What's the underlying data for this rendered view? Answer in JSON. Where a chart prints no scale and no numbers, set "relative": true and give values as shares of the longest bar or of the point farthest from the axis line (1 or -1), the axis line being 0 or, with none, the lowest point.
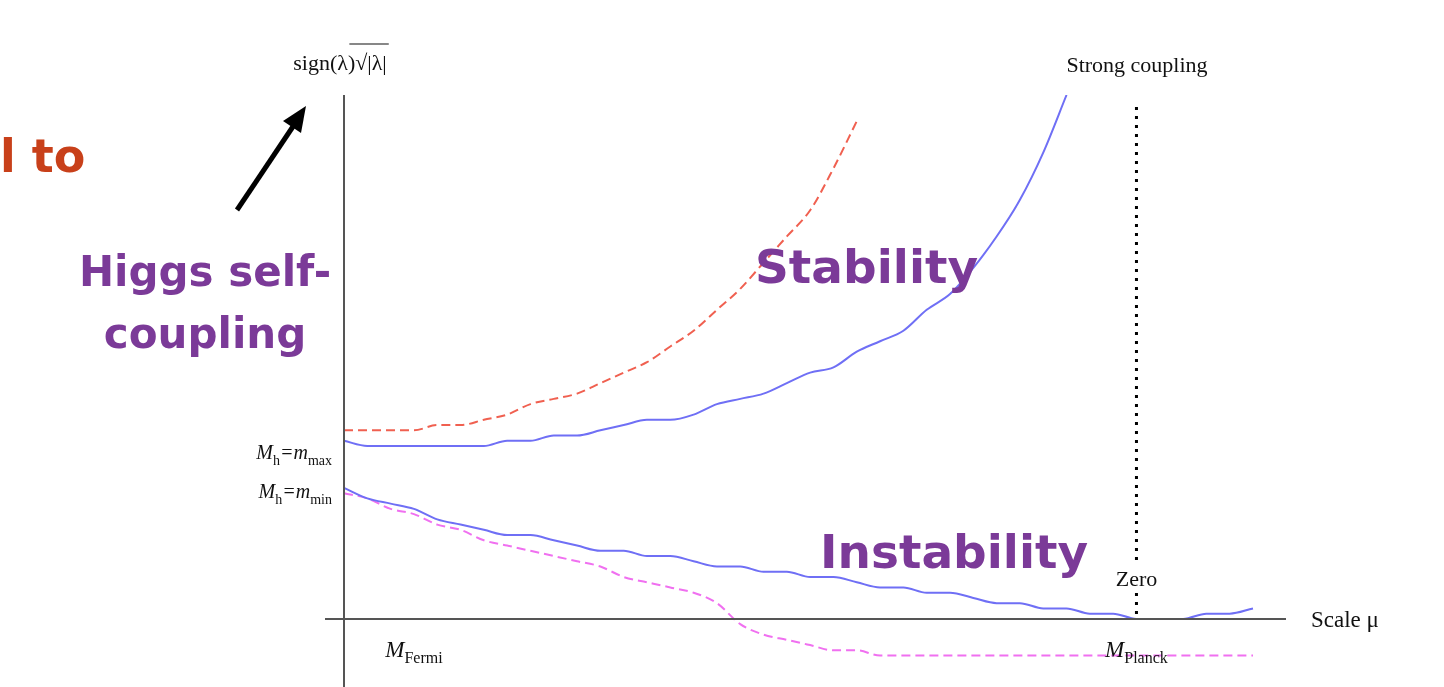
{
  "chart_data": {
    "type": "line",
    "relative": true,
    "marker": "none",
    "ylabel": "sign(λ)√|λ|",
    "xlabel": "Scale μ",
    "categories": [
      null,
      null,
      null,
      "M$_{Fermi}$",
      null,
      null,
      null,
      null,
      null,
      null,
      null,
      null,
      null,
      null,
      null,
      null,
      null,
      null,
      null,
      null,
      null,
      null,
      null,
      null,
      null,
      null,
      null,
      null,
      null,
      null,
      null,
      null,
      null,
      null,
      "M$_{Planck}$",
      null,
      null,
      null,
      null,
      null
    ],
    "series": [
      {
        "color": "#6f6ff5",
        "line_style": "solid",
        "values": [
          0.34,
          0.33,
          0.33,
          0.33,
          0.33,
          0.33,
          0.33,
          0.34,
          0.34,
          0.35,
          0.35,
          0.36,
          0.37,
          0.38,
          0.38,
          0.39,
          0.41,
          0.42,
          0.43,
          0.45,
          0.47,
          0.48,
          0.51,
          0.53,
          0.55,
          0.59,
          0.62,
          0.67,
          0.73,
          0.8,
          0.89,
          1,
          null,
          null,
          null,
          null,
          null,
          null,
          null,
          null
        ]
      },
      {
        "color": "#f06050",
        "line_style": "dashed",
        "values": [
          0.36,
          0.36,
          0.36,
          0.36,
          0.37,
          0.37,
          0.38,
          0.39,
          0.41,
          0.42,
          0.43,
          0.45,
          0.47,
          0.49,
          0.52,
          0.55,
          0.59,
          0.63,
          0.68,
          0.73,
          0.78,
          0.86,
          0.95,
          null,
          null,
          null,
          null,
          null,
          null,
          null,
          null,
          null,
          null,
          null,
          null,
          null,
          null,
          null,
          null,
          null
        ]
      },
      {
        "color": "#6f6ff5",
        "line_style": "solid",
        "values": [
          0.25,
          0.23,
          0.22,
          0.21,
          0.19,
          0.18,
          0.17,
          0.16,
          0.16,
          0.15,
          0.14,
          0.13,
          0.13,
          0.12,
          0.12,
          0.11,
          0.1,
          0.1,
          0.09,
          0.09,
          0.08,
          0.08,
          0.07,
          0.06,
          0.06,
          0.05,
          0.05,
          0.04,
          0.03,
          0.03,
          0.02,
          0.02,
          0.01,
          0.01,
          0,
          0,
          0,
          0.01,
          0.01,
          0.02
        ]
      },
      {
        "color": "#f070f0",
        "line_style": "dashed",
        "values": [
          0.24,
          0.23,
          0.21,
          0.2,
          0.18,
          0.17,
          0.15,
          0.14,
          0.13,
          0.12,
          0.11,
          0.1,
          0.08,
          0.07,
          0.06,
          0.05,
          0.03,
          -0.01,
          -0.03,
          -0.04,
          -0.05,
          -0.06,
          -0.06,
          -0.07,
          -0.07,
          -0.07,
          -0.07,
          -0.07,
          -0.07,
          -0.07,
          -0.07,
          -0.07,
          -0.07,
          -0.07,
          -0.07,
          -0.07,
          -0.07,
          -0.07,
          -0.07,
          -0.07
        ]
      }
    ],
    "ref_lines": [
      {
        "axis": "x",
        "value": "M$_{Planck}$",
        "color": "#000000",
        "line_style": "dotted"
      }
    ],
    "annotations": [
      "l to",
      "Higgs self-\ncoupling",
      "Stability",
      "Instability",
      "Strong coupling",
      {
        "text": "Zero",
        "x": "M$_{Planck}$",
        "y": 0
      },
      "M$_{h}$=m$_{max}$",
      "M$_{h}$=m$_{min}$"
    ]
  }
}
